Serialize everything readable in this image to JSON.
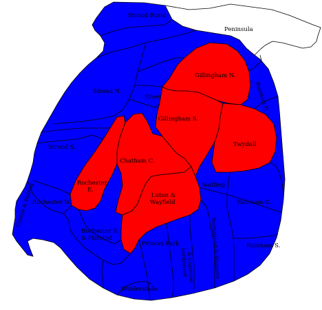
{
  "colors": {
    "blue": "#0000ff",
    "red": "#ff0000",
    "other": "#ffffff",
    "border": "#000000"
  },
  "wards": [
    {
      "id": "strood-rural",
      "label": "Strood Rural",
      "fill": "blue"
    },
    {
      "id": "peninsula",
      "label": "Peninsula",
      "fill": "other"
    },
    {
      "id": "strood-n",
      "label": "Strood N.",
      "fill": "blue"
    },
    {
      "id": "strood-s",
      "label": "Strood S.",
      "fill": "blue"
    },
    {
      "id": "cuxton-halling",
      "label": "Cuxton & Halling",
      "fill": "blue"
    },
    {
      "id": "rochester-w",
      "label": "Rochester W.",
      "fill": "blue"
    },
    {
      "id": "rochester-e",
      "label": "Rochester E.",
      "fill": "red"
    },
    {
      "id": "rochester-s-horsted",
      "label": "Rochester S. & Horsted",
      "fill": "blue"
    },
    {
      "id": "river",
      "label": "River",
      "fill": "blue"
    },
    {
      "id": "chatham-c",
      "label": "Chatham C.",
      "fill": "red"
    },
    {
      "id": "gillingham-n",
      "label": "Gillingham N.",
      "fill": "red"
    },
    {
      "id": "gillingham-s",
      "label": "Gillingham S.",
      "fill": "red"
    },
    {
      "id": "twydall",
      "label": "Twydall",
      "fill": "red"
    },
    {
      "id": "rainham-n",
      "label": "Rainham N.",
      "fill": "blue"
    },
    {
      "id": "rainham-c",
      "label": "Rainham C.",
      "fill": "blue"
    },
    {
      "id": "rainham-s",
      "label": "Rainham S.",
      "fill": "blue"
    },
    {
      "id": "luton-wayfield",
      "label": "Luton & Wayfield",
      "fill": "red"
    },
    {
      "id": "watling",
      "label": "Watling",
      "fill": "blue"
    },
    {
      "id": "princes-park",
      "label": "Princes Park",
      "fill": "blue"
    },
    {
      "id": "hempstead-wigmore",
      "label": "Hempstead & Wigmore",
      "fill": "blue"
    },
    {
      "id": "lordswood-capstone",
      "label": "Lordswood & Capstone",
      "fill": "blue"
    },
    {
      "id": "walderslade",
      "label": "Walderslade",
      "fill": "blue"
    }
  ]
}
